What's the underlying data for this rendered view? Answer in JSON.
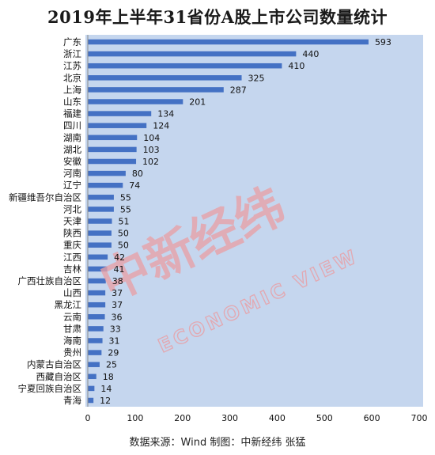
{
  "colors": {
    "plot_bg": "#c5d6ee",
    "bar": "#4471c4",
    "axis": "#8c8c8c",
    "watermark": "#e8a0a6"
  },
  "watermark": {
    "logo": "中新经纬",
    "subtitle": "ECONOMIC VIEW"
  },
  "source_note": "数据来源：Wind 制图：中新经纬 张猛",
  "chart_data": {
    "type": "bar",
    "orientation": "horizontal",
    "title": "2019年上半年31省份A股上市公司数量统计",
    "xlabel": "",
    "ylabel": "",
    "xlim": [
      0,
      700
    ],
    "xticks": [
      0,
      100,
      200,
      300,
      400,
      500,
      600,
      700
    ],
    "grid": false,
    "legend": "none",
    "categories": [
      "广东",
      "浙江",
      "江苏",
      "北京",
      "上海",
      "山东",
      "福建",
      "四川",
      "湖南",
      "湖北",
      "安徽",
      "河南",
      "辽宁",
      "新疆维吾尔自治区",
      "河北",
      "天津",
      "陕西",
      "重庆",
      "江西",
      "吉林",
      "广西壮族自治区",
      "山西",
      "黑龙江",
      "云南",
      "甘肃",
      "海南",
      "贵州",
      "内蒙古自治区",
      "西藏自治区",
      "宁夏回族自治区",
      "青海"
    ],
    "values": [
      593,
      440,
      410,
      325,
      287,
      201,
      134,
      124,
      104,
      103,
      102,
      80,
      74,
      55,
      55,
      51,
      50,
      50,
      42,
      41,
      38,
      37,
      37,
      36,
      33,
      31,
      29,
      25,
      18,
      14,
      12
    ]
  }
}
